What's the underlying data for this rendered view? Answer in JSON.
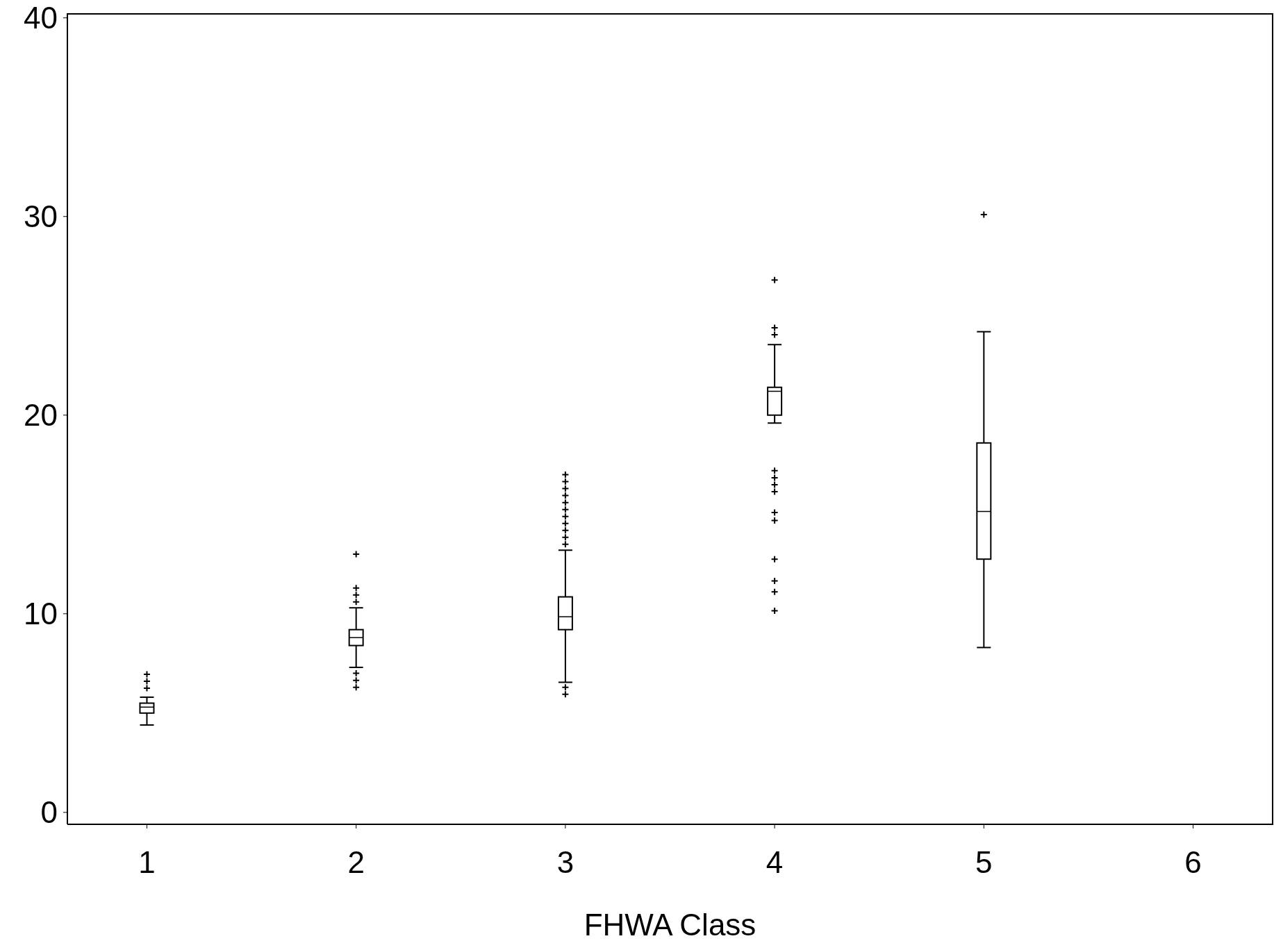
{
  "chart_data": {
    "type": "box",
    "xlabel": "FHWA Class",
    "categories": [
      "1",
      "2",
      "3",
      "4",
      "5",
      "6"
    ],
    "ylim": [
      -0.6,
      40.2
    ],
    "yticks": [
      0,
      10,
      20,
      30,
      40
    ],
    "grid": false,
    "marker": "cross",
    "boxes": [
      {
        "low": 4.4,
        "q1": 5.0,
        "median": 5.3,
        "q3": 5.5,
        "high": 5.8,
        "outliers": [
          6.25,
          6.6,
          6.95
        ]
      },
      {
        "low": 7.3,
        "q1": 8.4,
        "median": 8.8,
        "q3": 9.2,
        "high": 10.3,
        "outliers": [
          6.3,
          6.65,
          7.0,
          10.6,
          10.95,
          11.3,
          13.0
        ]
      },
      {
        "low": 6.55,
        "q1": 9.2,
        "median": 9.85,
        "q3": 10.85,
        "high": 13.2,
        "outliers": [
          5.95,
          6.3,
          13.5,
          13.85,
          14.2,
          14.55,
          14.9,
          15.25,
          15.6,
          15.95,
          16.3,
          16.65,
          17.0
        ]
      },
      {
        "low": 19.6,
        "q1": 20.0,
        "median": 21.2,
        "q3": 21.4,
        "high": 23.55,
        "outliers": [
          10.15,
          11.1,
          11.65,
          12.75,
          14.7,
          15.1,
          16.15,
          16.5,
          16.85,
          17.2,
          24.05,
          24.4,
          26.8
        ]
      },
      {
        "low": 8.3,
        "q1": 12.75,
        "median": 15.15,
        "q3": 18.6,
        "high": 24.2,
        "outliers": [
          30.1
        ]
      },
      null
    ]
  }
}
